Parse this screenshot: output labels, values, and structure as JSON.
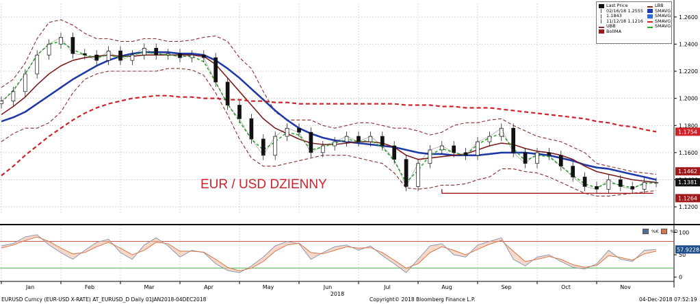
{
  "chart_data": {
    "type": "line",
    "title": "EUR / USD DZIENNY",
    "instrument": "EURUSD Curncy (EUR-USD X-RATE) AT_EURUSD_D  Daily 01JAN2018-04DEC2018",
    "copyright": "Copyright© 2018 Bloomberg Finance L.P.",
    "timestamp": "04-Dec-2018 07:52:19",
    "x_ticks": [
      "Jan",
      "Feb",
      "Mar",
      "Apr",
      "May",
      "Jun",
      "Jul",
      "Aug",
      "Sep",
      "Oct",
      "Nov"
    ],
    "year_label": "2018",
    "price_axis": {
      "ylim": [
        1.115,
        1.27
      ],
      "ticks": [
        "1.2600",
        "1.2400",
        "1.2200",
        "1.2000",
        "1.1800",
        "1.1600",
        "1.1400",
        "1.1200"
      ]
    },
    "osc_axis": {
      "ylim": [
        -5,
        110
      ],
      "ticks": [
        "100",
        "50",
        "0"
      ]
    },
    "price_tags": [
      {
        "label": "1.1754",
        "value": 1.1754,
        "color": "#d0202a"
      },
      {
        "label": "1.1462",
        "value": 1.1462,
        "color": "#a01818"
      },
      {
        "label": "1.1381",
        "value": 1.1381,
        "color": "#111111"
      },
      {
        "label": "1.1264",
        "value": 1.1264,
        "color": "#a01818"
      }
    ],
    "osc_tag": {
      "label": "57.9228",
      "color": "#1f4e8c"
    },
    "support_line": {
      "value": 1.13,
      "from_month": 7.4,
      "to_month": 10.95
    },
    "series": [
      {
        "name": "Last Price",
        "kind": "candles",
        "x": [
          0,
          0.2,
          0.4,
          0.6,
          0.8,
          1.0,
          1.2,
          1.4,
          1.6,
          1.8,
          2.0,
          2.2,
          2.4,
          2.6,
          2.8,
          3.0,
          3.2,
          3.4,
          3.6,
          3.8,
          4.0,
          4.2,
          4.4,
          4.6,
          4.8,
          5.0,
          5.2,
          5.4,
          5.6,
          5.8,
          6.0,
          6.2,
          6.4,
          6.6,
          6.8,
          7.0,
          7.2,
          7.4,
          7.6,
          7.8,
          8.0,
          8.2,
          8.4,
          8.6,
          8.8,
          9.0,
          9.2,
          9.4,
          9.6,
          9.8,
          10.0,
          10.2,
          10.4,
          10.6,
          10.8,
          11.0
        ],
        "close": [
          1.198,
          1.205,
          1.218,
          1.232,
          1.24,
          1.245,
          1.233,
          1.232,
          1.228,
          1.235,
          1.228,
          1.232,
          1.237,
          1.232,
          1.233,
          1.23,
          1.232,
          1.23,
          1.212,
          1.195,
          1.185,
          1.17,
          1.158,
          1.172,
          1.178,
          1.175,
          1.16,
          1.165,
          1.168,
          1.172,
          1.168,
          1.172,
          1.165,
          1.155,
          1.135,
          1.152,
          1.162,
          1.165,
          1.16,
          1.158,
          1.168,
          1.172,
          1.178,
          1.16,
          1.152,
          1.16,
          1.158,
          1.15,
          1.142,
          1.135,
          1.133,
          1.14,
          1.135,
          1.133,
          1.138,
          1.138
        ]
      },
      {
        "name": "SMAVG",
        "color": "#1e3aa8",
        "width": 2.6,
        "values": [
          1.183,
          1.186,
          1.19,
          1.196,
          1.202,
          1.208,
          1.214,
          1.219,
          1.224,
          1.228,
          1.231,
          1.233,
          1.234,
          1.234,
          1.234,
          1.233,
          1.233,
          1.232,
          1.228,
          1.222,
          1.215,
          1.207,
          1.199,
          1.191,
          1.184,
          1.178,
          1.174,
          1.171,
          1.169,
          1.168,
          1.167,
          1.166,
          1.165,
          1.164,
          1.162,
          1.16,
          1.159,
          1.159,
          1.158,
          1.158,
          1.158,
          1.159,
          1.16,
          1.16,
          1.16,
          1.159,
          1.158,
          1.156,
          1.154,
          1.151,
          1.149,
          1.148,
          1.146,
          1.144,
          1.142,
          1.14
        ]
      },
      {
        "name": "SMAVG",
        "color": "#7a1a1a",
        "width": 1.6,
        "values": [
          1.188,
          1.194,
          1.201,
          1.21,
          1.218,
          1.224,
          1.228,
          1.23,
          1.231,
          1.232,
          1.231,
          1.231,
          1.232,
          1.232,
          1.232,
          1.232,
          1.232,
          1.231,
          1.225,
          1.215,
          1.205,
          1.195,
          1.185,
          1.178,
          1.174,
          1.17,
          1.167,
          1.166,
          1.166,
          1.167,
          1.168,
          1.168,
          1.167,
          1.164,
          1.158,
          1.155,
          1.156,
          1.157,
          1.158,
          1.159,
          1.162,
          1.165,
          1.167,
          1.166,
          1.163,
          1.161,
          1.16,
          1.158,
          1.155,
          1.15,
          1.146,
          1.144,
          1.142,
          1.14,
          1.139,
          1.138
        ]
      },
      {
        "name": "SMAVG",
        "color": "#d0202a",
        "width": 2.2,
        "dash": "6,4",
        "values": [
          1.143,
          1.15,
          1.158,
          1.165,
          1.172,
          1.178,
          1.184,
          1.189,
          1.193,
          1.196,
          1.198,
          1.2,
          1.201,
          1.202,
          1.202,
          1.201,
          1.201,
          1.2,
          1.2,
          1.199,
          1.199,
          1.198,
          1.198,
          1.197,
          1.197,
          1.196,
          1.196,
          1.196,
          1.196,
          1.196,
          1.196,
          1.196,
          1.196,
          1.196,
          1.195,
          1.195,
          1.195,
          1.194,
          1.194,
          1.193,
          1.193,
          1.193,
          1.192,
          1.191,
          1.19,
          1.189,
          1.188,
          1.187,
          1.186,
          1.185,
          1.183,
          1.182,
          1.18,
          1.179,
          1.177,
          1.1754
        ]
      },
      {
        "name": "SMAVG",
        "color": "#2aa82a",
        "width": 1.6,
        "dash": "4,3",
        "values": [
          1.197,
          1.206,
          1.218,
          1.232,
          1.24,
          1.242,
          1.236,
          1.232,
          1.23,
          1.232,
          1.23,
          1.232,
          1.234,
          1.233,
          1.232,
          1.231,
          1.231,
          1.227,
          1.212,
          1.196,
          1.183,
          1.17,
          1.162,
          1.168,
          1.175,
          1.173,
          1.162,
          1.164,
          1.167,
          1.17,
          1.168,
          1.169,
          1.164,
          1.154,
          1.138,
          1.147,
          1.158,
          1.163,
          1.16,
          1.158,
          1.166,
          1.171,
          1.174,
          1.163,
          1.154,
          1.158,
          1.157,
          1.15,
          1.143,
          1.137,
          1.134,
          1.138,
          1.136,
          1.134,
          1.137,
          1.138
        ]
      },
      {
        "name": "UBB",
        "color": "#8a2a2a",
        "width": 1.1,
        "dash": "5,3",
        "values": [
          1.208,
          1.214,
          1.226,
          1.244,
          1.256,
          1.258,
          1.254,
          1.248,
          1.244,
          1.244,
          1.242,
          1.242,
          1.244,
          1.244,
          1.242,
          1.242,
          1.243,
          1.245,
          1.246,
          1.242,
          1.23,
          1.222,
          1.205,
          1.19,
          1.184,
          1.184,
          1.184,
          1.18,
          1.178,
          1.18,
          1.182,
          1.182,
          1.18,
          1.178,
          1.178,
          1.176,
          1.173,
          1.175,
          1.18,
          1.182,
          1.182,
          1.184,
          1.185,
          1.18,
          1.176,
          1.172,
          1.17,
          1.168,
          1.164,
          1.16,
          1.152,
          1.15,
          1.148,
          1.146,
          1.145,
          1.144
        ]
      },
      {
        "name": "LBB",
        "color": "#8a2a2a",
        "width": 1.1,
        "dash": "5,3",
        "values": [
          1.168,
          1.174,
          1.178,
          1.178,
          1.182,
          1.19,
          1.204,
          1.214,
          1.218,
          1.22,
          1.22,
          1.22,
          1.22,
          1.22,
          1.222,
          1.222,
          1.221,
          1.217,
          1.204,
          1.188,
          1.17,
          1.156,
          1.15,
          1.15,
          1.152,
          1.154,
          1.156,
          1.158,
          1.158,
          1.158,
          1.156,
          1.154,
          1.152,
          1.145,
          1.134,
          1.133,
          1.134,
          1.136,
          1.136,
          1.137,
          1.14,
          1.142,
          1.148,
          1.148,
          1.146,
          1.145,
          1.142,
          1.138,
          1.134,
          1.13,
          1.128,
          1.128,
          1.129,
          1.13,
          1.131,
          1.132
        ]
      }
    ],
    "osc_series": [
      {
        "name": "%K",
        "color": "#8a9bb5",
        "values": [
          70,
          75,
          90,
          95,
          72,
          55,
          40,
          60,
          78,
          85,
          55,
          40,
          72,
          88,
          70,
          45,
          60,
          55,
          30,
          15,
          10,
          25,
          45,
          70,
          80,
          75,
          40,
          55,
          68,
          72,
          60,
          70,
          48,
          30,
          10,
          40,
          70,
          75,
          50,
          45,
          72,
          80,
          88,
          40,
          25,
          45,
          50,
          35,
          22,
          18,
          30,
          60,
          40,
          35,
          60,
          62
        ]
      },
      {
        "name": "%D",
        "color": "#d6764a",
        "values": [
          65,
          72,
          82,
          90,
          80,
          65,
          52,
          55,
          68,
          78,
          65,
          50,
          60,
          78,
          75,
          58,
          58,
          56,
          40,
          22,
          14,
          20,
          35,
          58,
          72,
          76,
          55,
          52,
          60,
          68,
          65,
          66,
          55,
          38,
          20,
          30,
          55,
          68,
          60,
          50,
          62,
          74,
          82,
          58,
          35,
          40,
          46,
          40,
          28,
          22,
          26,
          48,
          44,
          38,
          52,
          58
        ]
      }
    ],
    "osc_levels": [
      {
        "value": 80,
        "color": "#c0392b"
      },
      {
        "value": 20,
        "color": "#2aa82a"
      }
    ],
    "grid": true,
    "legend_position": "top-right"
  },
  "legend": {
    "left": [
      {
        "label": "Last Price",
        "color": "#111111",
        "kind": "box"
      },
      {
        "label": "02/16/18 1.2555",
        "color": "#555555",
        "kind": "tick"
      },
      {
        "label": "1.1843",
        "color": "#555555",
        "kind": "tick"
      },
      {
        "label": "11/12/18 1.1216",
        "color": "#555555",
        "kind": "tick"
      },
      {
        "label": "UBB",
        "color": "#8a2a2a",
        "kind": "line"
      },
      {
        "label": "BollMA",
        "color": "#a01818",
        "kind": "box"
      }
    ],
    "right": [
      {
        "label": "LBB",
        "color": "#8a2a2a",
        "kind": "line"
      },
      {
        "label": "SMAVG",
        "color": "#1e3aa8",
        "kind": "box"
      },
      {
        "label": "SMAVG",
        "color": "#2e6ad8",
        "kind": "box"
      },
      {
        "label": "SMAVG",
        "color": "#d0202a",
        "kind": "line"
      },
      {
        "label": "SMAVG",
        "color": "#2aa82a",
        "kind": "line"
      }
    ]
  },
  "osc_legend": {
    "k_label": "%K",
    "d_label": "%D",
    "k_color": "#4e6e9c",
    "d_color": "#d6764a"
  }
}
